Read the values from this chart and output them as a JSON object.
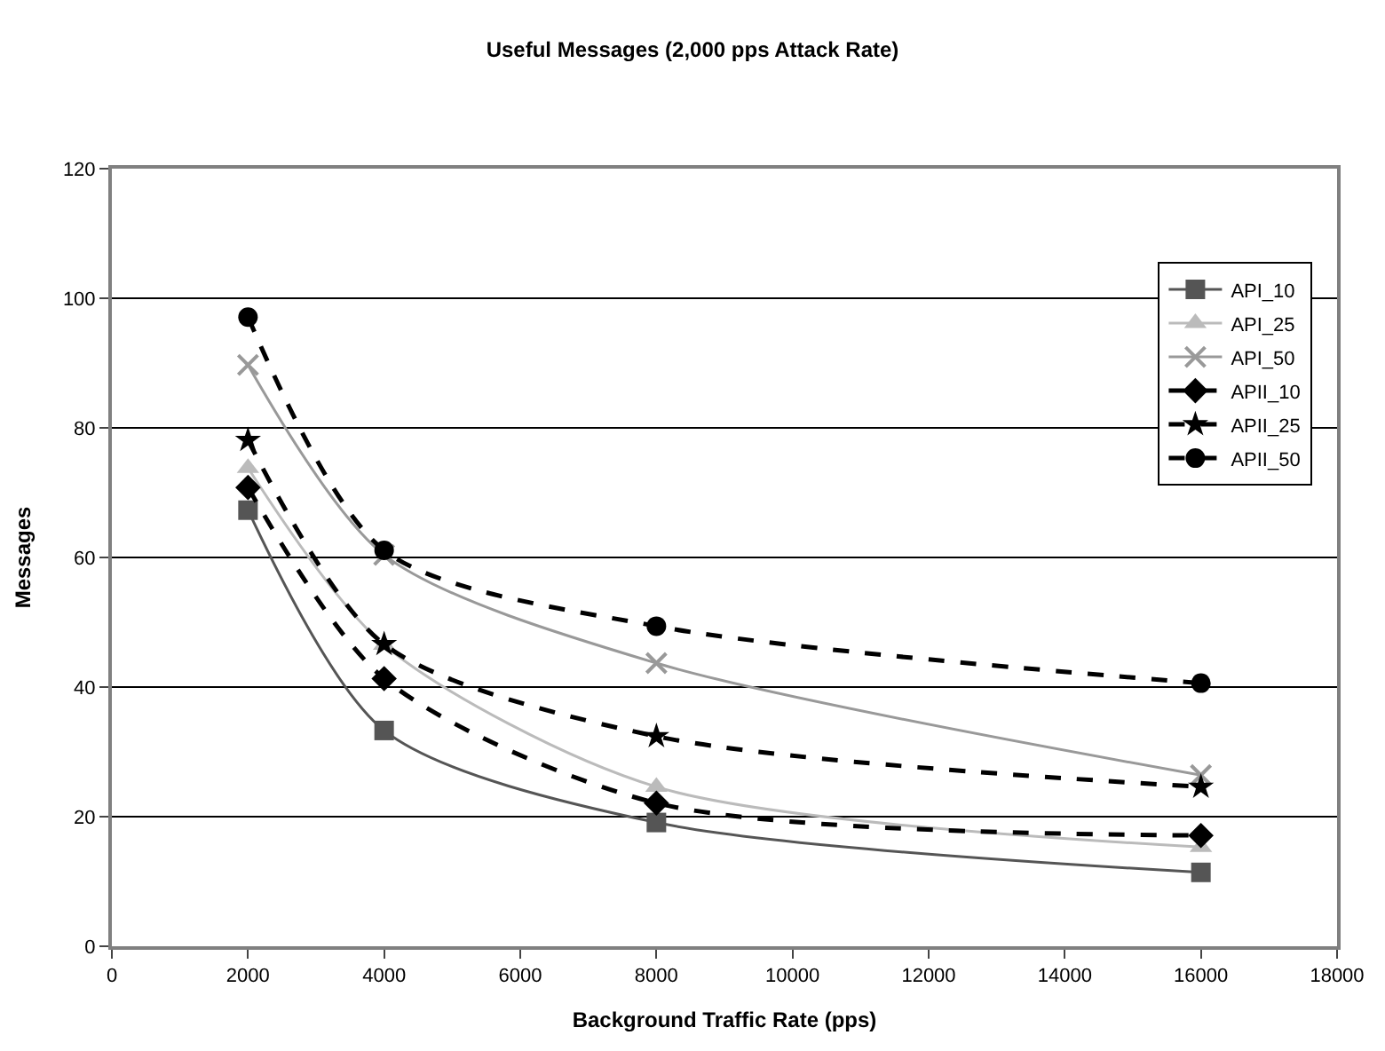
{
  "chart_data": {
    "type": "line",
    "title": "Useful Messages (2,000 pps Attack Rate)",
    "xlabel": "Background Traffic Rate (pps)",
    "ylabel": "Messages",
    "x": [
      2000,
      4000,
      8000,
      16000
    ],
    "xlim": [
      0,
      18000
    ],
    "xticks": [
      0,
      2000,
      4000,
      6000,
      8000,
      10000,
      12000,
      14000,
      16000,
      18000
    ],
    "ylim": [
      0,
      120
    ],
    "yticks": [
      0,
      20,
      40,
      60,
      80,
      100,
      120
    ],
    "grid": "y",
    "legend": "top right",
    "series": [
      {
        "name": "API_10",
        "color": "#555555",
        "marker": "square",
        "line_style": "solid",
        "values": [
          67.3,
          33.3,
          19.1,
          11.4
        ]
      },
      {
        "name": "API_25",
        "color": "#bbbbbb",
        "marker": "triangle",
        "line_style": "solid",
        "values": [
          73.8,
          46.5,
          24.6,
          15.3
        ]
      },
      {
        "name": "API_50",
        "color": "#999999",
        "marker": "cross",
        "line_style": "solid",
        "values": [
          89.7,
          60.4,
          43.7,
          26.4
        ]
      },
      {
        "name": "APII_10",
        "color": "#000000",
        "marker": "diamond",
        "line_style": "dashed",
        "values": [
          70.8,
          41.3,
          22.1,
          17.1
        ]
      },
      {
        "name": "APII_25",
        "color": "#000000",
        "marker": "star",
        "line_style": "dashed",
        "values": [
          78.1,
          46.6,
          32.4,
          24.6
        ]
      },
      {
        "name": "APII_50",
        "color": "#000000",
        "marker": "circle",
        "line_style": "dashed",
        "values": [
          97.1,
          61.1,
          49.4,
          40.6
        ]
      }
    ]
  }
}
